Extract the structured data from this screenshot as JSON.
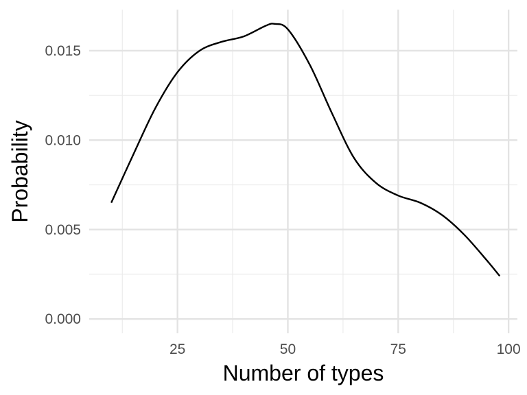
{
  "chart_data": {
    "type": "line",
    "xlabel": "Number of types",
    "ylabel": "Probability",
    "xlim": [
      5,
      102
    ],
    "ylim": [
      -0.0008,
      0.0173
    ],
    "x_ticks": [
      25,
      50,
      75,
      100
    ],
    "x_tick_labels": [
      "25",
      "50",
      "75",
      "100"
    ],
    "y_ticks": [
      0.0,
      0.005,
      0.01,
      0.015
    ],
    "y_tick_labels": [
      "0.000",
      "0.005",
      "0.010",
      "0.015"
    ],
    "grid": true,
    "legend": "none",
    "line_color": "#000000",
    "series": [
      {
        "x": [
          10,
          15,
          20,
          25,
          30,
          35,
          40,
          45,
          47,
          50,
          55,
          60,
          65,
          70,
          75,
          80,
          85,
          90,
          95,
          98
        ],
        "values": [
          0.0065,
          0.0092,
          0.0118,
          0.0138,
          0.015,
          0.0155,
          0.0158,
          0.0164,
          0.0165,
          0.0162,
          0.0142,
          0.0115,
          0.009,
          0.0076,
          0.0069,
          0.0065,
          0.0058,
          0.0047,
          0.0033,
          0.0024
        ]
      }
    ]
  }
}
